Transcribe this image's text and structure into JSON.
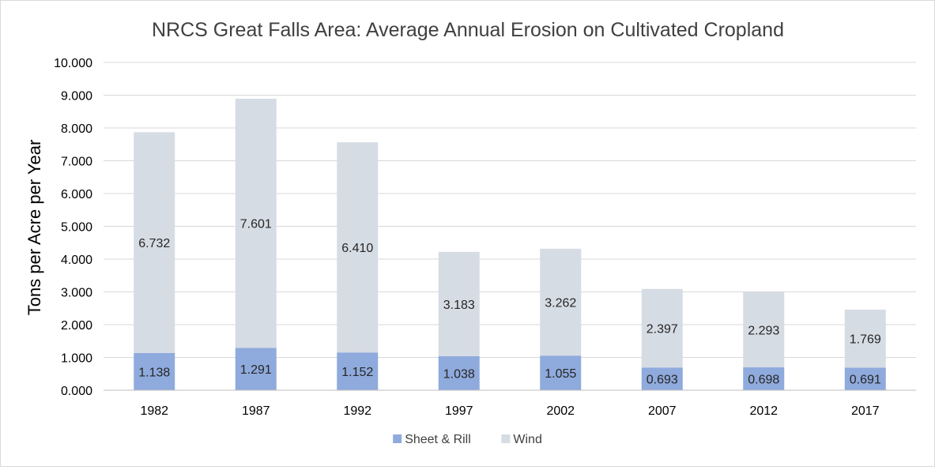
{
  "chart_data": {
    "type": "bar",
    "stacked": true,
    "title": "NRCS Great Falls Area: Average Annual Erosion on Cultivated Cropland",
    "xlabel": "",
    "ylabel": "Tons per Acre per Year",
    "ylim": [
      0,
      10
    ],
    "yticks": [
      "0.000",
      "1.000",
      "2.000",
      "3.000",
      "4.000",
      "5.000",
      "6.000",
      "7.000",
      "8.000",
      "9.000",
      "10.000"
    ],
    "grid": true,
    "legend_position": "bottom",
    "categories": [
      "1982",
      "1987",
      "1992",
      "1997",
      "2002",
      "2007",
      "2012",
      "2017"
    ],
    "series": [
      {
        "name": "Sheet & Rill",
        "color": "#8faadc",
        "values": [
          1.138,
          1.291,
          1.152,
          1.038,
          1.055,
          0.693,
          0.698,
          0.691
        ],
        "labels": [
          "1.138",
          "1.291",
          "1.152",
          "1.038",
          "1.055",
          "0.693",
          "0.698",
          "0.691"
        ]
      },
      {
        "name": "Wind",
        "color": "#d6dce4",
        "values": [
          6.732,
          7.601,
          6.41,
          3.183,
          3.262,
          2.397,
          2.293,
          1.769
        ],
        "labels": [
          "6.732",
          "7.601",
          "6.410",
          "3.183",
          "3.262",
          "2.397",
          "2.293",
          "1.769"
        ]
      }
    ]
  }
}
